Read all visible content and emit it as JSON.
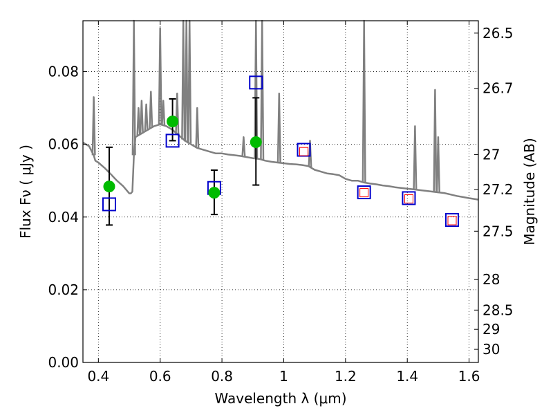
{
  "chart_data": {
    "type": "scatter",
    "title": "",
    "xlabel": "Wavelength  λ (μm)",
    "ylabel": "Flux  Fν  ( μJy )",
    "ylabel_right": "Magnitude (AB)",
    "xlim": [
      0.35,
      1.63
    ],
    "ylim": [
      0.0,
      0.094
    ],
    "grid": true,
    "x_ticks": [
      0.4,
      0.6,
      0.8,
      1.0,
      1.2,
      1.4,
      1.6
    ],
    "x_tick_labels": [
      "0.4",
      "0.6",
      "0.8",
      "1",
      "1.2",
      "1.4",
      "1.6"
    ],
    "y_ticks": [
      0.0,
      0.02,
      0.04,
      0.06,
      0.08
    ],
    "y_tick_labels": [
      "0.00",
      "0.02",
      "0.04",
      "0.06",
      "0.08"
    ],
    "right_ticks": [
      {
        "label": "26.5",
        "flux": 0.0906
      },
      {
        "label": "26.7",
        "flux": 0.0754
      },
      {
        "label": "27",
        "flux": 0.0572
      },
      {
        "label": "27.2",
        "flux": 0.0476
      },
      {
        "label": "27.5",
        "flux": 0.0361
      },
      {
        "label": "28",
        "flux": 0.0228
      },
      {
        "label": "28.5",
        "flux": 0.0144
      },
      {
        "label": "29",
        "flux": 0.0091
      },
      {
        "label": "30",
        "flux": 0.0036
      }
    ],
    "series": [
      {
        "kind": "spectrum",
        "color": "#808080",
        "x": [
          0.35,
          0.37,
          0.385,
          0.39,
          0.4,
          0.42,
          0.44,
          0.46,
          0.48,
          0.5,
          0.505,
          0.51,
          0.515,
          0.52,
          0.54,
          0.56,
          0.58,
          0.6,
          0.62,
          0.64,
          0.66,
          0.68,
          0.7,
          0.72,
          0.74,
          0.76,
          0.78,
          0.8,
          0.82,
          0.84,
          0.86,
          0.88,
          0.9,
          0.92,
          0.94,
          0.96,
          0.98,
          1.0,
          1.02,
          1.04,
          1.06,
          1.08,
          1.1,
          1.12,
          1.14,
          1.16,
          1.18,
          1.2,
          1.22,
          1.24,
          1.26,
          1.28,
          1.3,
          1.32,
          1.34,
          1.36,
          1.38,
          1.4,
          1.42,
          1.44,
          1.46,
          1.48,
          1.5,
          1.52,
          1.54,
          1.56,
          1.58,
          1.6,
          1.63
        ],
        "y": [
          0.0605,
          0.0595,
          0.057,
          0.0555,
          0.055,
          0.0535,
          0.0518,
          0.05,
          0.0485,
          0.0465,
          0.0465,
          0.047,
          0.057,
          0.062,
          0.063,
          0.064,
          0.065,
          0.0655,
          0.065,
          0.064,
          0.0625,
          0.061,
          0.06,
          0.059,
          0.0585,
          0.058,
          0.0575,
          0.0575,
          0.0572,
          0.057,
          0.0568,
          0.0565,
          0.0562,
          0.056,
          0.0555,
          0.0552,
          0.055,
          0.0548,
          0.0546,
          0.0545,
          0.0543,
          0.054,
          0.053,
          0.0525,
          0.052,
          0.0518,
          0.0515,
          0.0505,
          0.05,
          0.05,
          0.0495,
          0.0492,
          0.049,
          0.0487,
          0.0485,
          0.0482,
          0.048,
          0.0478,
          0.0476,
          0.0474,
          0.0472,
          0.047,
          0.0468,
          0.0466,
          0.0462,
          0.0458,
          0.0455,
          0.0452,
          0.0448
        ],
        "lines": [
          {
            "x": 0.385,
            "y": 0.073
          },
          {
            "x": 0.515,
            "y": 0.094
          },
          {
            "x": 0.53,
            "y": 0.07
          },
          {
            "x": 0.54,
            "y": 0.072
          },
          {
            "x": 0.555,
            "y": 0.071
          },
          {
            "x": 0.57,
            "y": 0.0745
          },
          {
            "x": 0.6,
            "y": 0.092
          },
          {
            "x": 0.61,
            "y": 0.072
          },
          {
            "x": 0.655,
            "y": 0.074
          },
          {
            "x": 0.675,
            "y": 0.094
          },
          {
            "x": 0.685,
            "y": 0.094
          },
          {
            "x": 0.695,
            "y": 0.094
          },
          {
            "x": 0.72,
            "y": 0.07
          },
          {
            "x": 0.87,
            "y": 0.062
          },
          {
            "x": 0.91,
            "y": 0.094
          },
          {
            "x": 0.93,
            "y": 0.094
          },
          {
            "x": 0.985,
            "y": 0.074
          },
          {
            "x": 1.085,
            "y": 0.061
          },
          {
            "x": 1.26,
            "y": 0.094
          },
          {
            "x": 1.425,
            "y": 0.065
          },
          {
            "x": 1.49,
            "y": 0.075
          },
          {
            "x": 1.5,
            "y": 0.062
          }
        ]
      },
      {
        "kind": "model_squares",
        "color": "#0000cc",
        "x": [
          0.435,
          0.64,
          0.775,
          0.91,
          1.065,
          1.26,
          1.405,
          1.545
        ],
        "y": [
          0.0435,
          0.061,
          0.048,
          0.077,
          0.0585,
          0.0468,
          0.0452,
          0.0392
        ]
      },
      {
        "kind": "observed_squares",
        "color": "#ff0000",
        "x": [
          1.065,
          1.26,
          1.405,
          1.545
        ],
        "y": [
          0.058,
          0.0467,
          0.045,
          0.039
        ]
      },
      {
        "kind": "observed_points",
        "color": "#00bb00",
        "x": [
          0.435,
          0.64,
          0.775,
          0.91
        ],
        "y": [
          0.0484,
          0.0663,
          0.0467,
          0.0606
        ],
        "yerr_low": [
          0.0106,
          0.0053,
          0.006,
          0.0118
        ],
        "yerr_high": [
          0.0108,
          0.0062,
          0.0062,
          0.0122
        ]
      }
    ]
  }
}
